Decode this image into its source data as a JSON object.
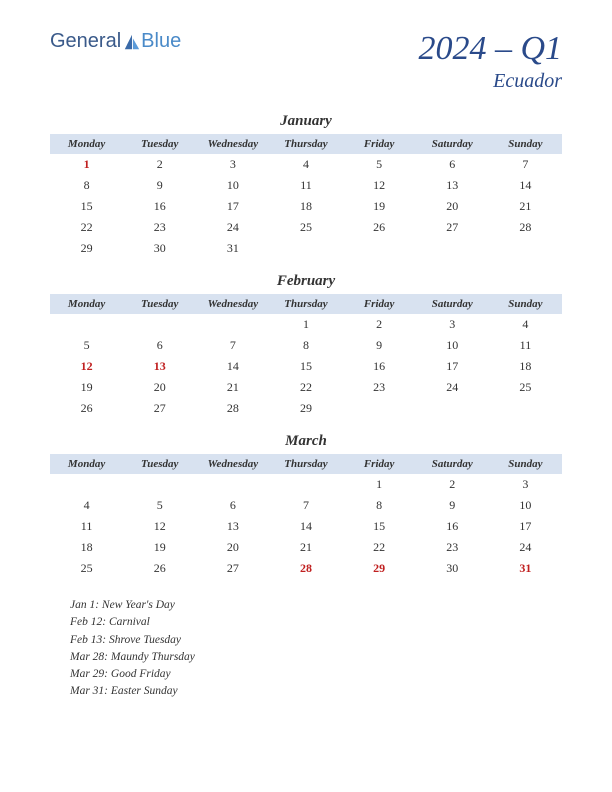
{
  "logo": {
    "text1": "General",
    "text2": "Blue"
  },
  "title": {
    "quarter": "2024 – Q1",
    "country": "Ecuador"
  },
  "colors": {
    "header_bg": "#d8e2f0",
    "title_color": "#2a4a8a",
    "holiday_color": "#c02020",
    "text_color": "#333333",
    "background": "#ffffff"
  },
  "daynames": [
    "Monday",
    "Tuesday",
    "Wednesday",
    "Thursday",
    "Friday",
    "Saturday",
    "Sunday"
  ],
  "months": [
    {
      "name": "January",
      "weeks": [
        [
          {
            "d": "1",
            "h": true
          },
          {
            "d": "2"
          },
          {
            "d": "3"
          },
          {
            "d": "4"
          },
          {
            "d": "5"
          },
          {
            "d": "6"
          },
          {
            "d": "7"
          }
        ],
        [
          {
            "d": "8"
          },
          {
            "d": "9"
          },
          {
            "d": "10"
          },
          {
            "d": "11"
          },
          {
            "d": "12"
          },
          {
            "d": "13"
          },
          {
            "d": "14"
          }
        ],
        [
          {
            "d": "15"
          },
          {
            "d": "16"
          },
          {
            "d": "17"
          },
          {
            "d": "18"
          },
          {
            "d": "19"
          },
          {
            "d": "20"
          },
          {
            "d": "21"
          }
        ],
        [
          {
            "d": "22"
          },
          {
            "d": "23"
          },
          {
            "d": "24"
          },
          {
            "d": "25"
          },
          {
            "d": "26"
          },
          {
            "d": "27"
          },
          {
            "d": "28"
          }
        ],
        [
          {
            "d": "29"
          },
          {
            "d": "30"
          },
          {
            "d": "31"
          },
          {
            "d": ""
          },
          {
            "d": ""
          },
          {
            "d": ""
          },
          {
            "d": ""
          }
        ]
      ]
    },
    {
      "name": "February",
      "weeks": [
        [
          {
            "d": ""
          },
          {
            "d": ""
          },
          {
            "d": ""
          },
          {
            "d": "1"
          },
          {
            "d": "2"
          },
          {
            "d": "3"
          },
          {
            "d": "4"
          }
        ],
        [
          {
            "d": "5"
          },
          {
            "d": "6"
          },
          {
            "d": "7"
          },
          {
            "d": "8"
          },
          {
            "d": "9"
          },
          {
            "d": "10"
          },
          {
            "d": "11"
          }
        ],
        [
          {
            "d": "12",
            "h": true
          },
          {
            "d": "13",
            "h": true
          },
          {
            "d": "14"
          },
          {
            "d": "15"
          },
          {
            "d": "16"
          },
          {
            "d": "17"
          },
          {
            "d": "18"
          }
        ],
        [
          {
            "d": "19"
          },
          {
            "d": "20"
          },
          {
            "d": "21"
          },
          {
            "d": "22"
          },
          {
            "d": "23"
          },
          {
            "d": "24"
          },
          {
            "d": "25"
          }
        ],
        [
          {
            "d": "26"
          },
          {
            "d": "27"
          },
          {
            "d": "28"
          },
          {
            "d": "29"
          },
          {
            "d": ""
          },
          {
            "d": ""
          },
          {
            "d": ""
          }
        ]
      ]
    },
    {
      "name": "March",
      "weeks": [
        [
          {
            "d": ""
          },
          {
            "d": ""
          },
          {
            "d": ""
          },
          {
            "d": ""
          },
          {
            "d": "1"
          },
          {
            "d": "2"
          },
          {
            "d": "3"
          }
        ],
        [
          {
            "d": "4"
          },
          {
            "d": "5"
          },
          {
            "d": "6"
          },
          {
            "d": "7"
          },
          {
            "d": "8"
          },
          {
            "d": "9"
          },
          {
            "d": "10"
          }
        ],
        [
          {
            "d": "11"
          },
          {
            "d": "12"
          },
          {
            "d": "13"
          },
          {
            "d": "14"
          },
          {
            "d": "15"
          },
          {
            "d": "16"
          },
          {
            "d": "17"
          }
        ],
        [
          {
            "d": "18"
          },
          {
            "d": "19"
          },
          {
            "d": "20"
          },
          {
            "d": "21"
          },
          {
            "d": "22"
          },
          {
            "d": "23"
          },
          {
            "d": "24"
          }
        ],
        [
          {
            "d": "25"
          },
          {
            "d": "26"
          },
          {
            "d": "27"
          },
          {
            "d": "28",
            "h": true
          },
          {
            "d": "29",
            "h": true
          },
          {
            "d": "30"
          },
          {
            "d": "31",
            "h": true
          }
        ]
      ]
    }
  ],
  "holidays": [
    "Jan 1: New Year's Day",
    "Feb 12: Carnival",
    "Feb 13: Shrove Tuesday",
    "Mar 28: Maundy Thursday",
    "Mar 29: Good Friday",
    "Mar 31: Easter Sunday"
  ]
}
